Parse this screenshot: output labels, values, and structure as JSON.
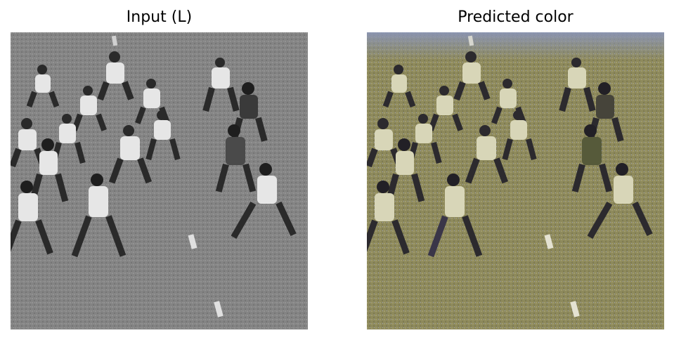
{
  "figure": {
    "panels": [
      {
        "title": "Input (L)"
      },
      {
        "title": "Predicted color"
      }
    ]
  },
  "colors": {
    "input_field": "#8a8a8a",
    "input_field_dark": "#6e6e6e",
    "input_player_light": "#e6e6e6",
    "input_player_dark": "#2a2a2a",
    "pred_field": "#8f8c5e",
    "pred_field_sky": "#8a95b8",
    "pred_player_light": "#d8d6b8",
    "pred_player_dark": "#2c2a2e"
  }
}
